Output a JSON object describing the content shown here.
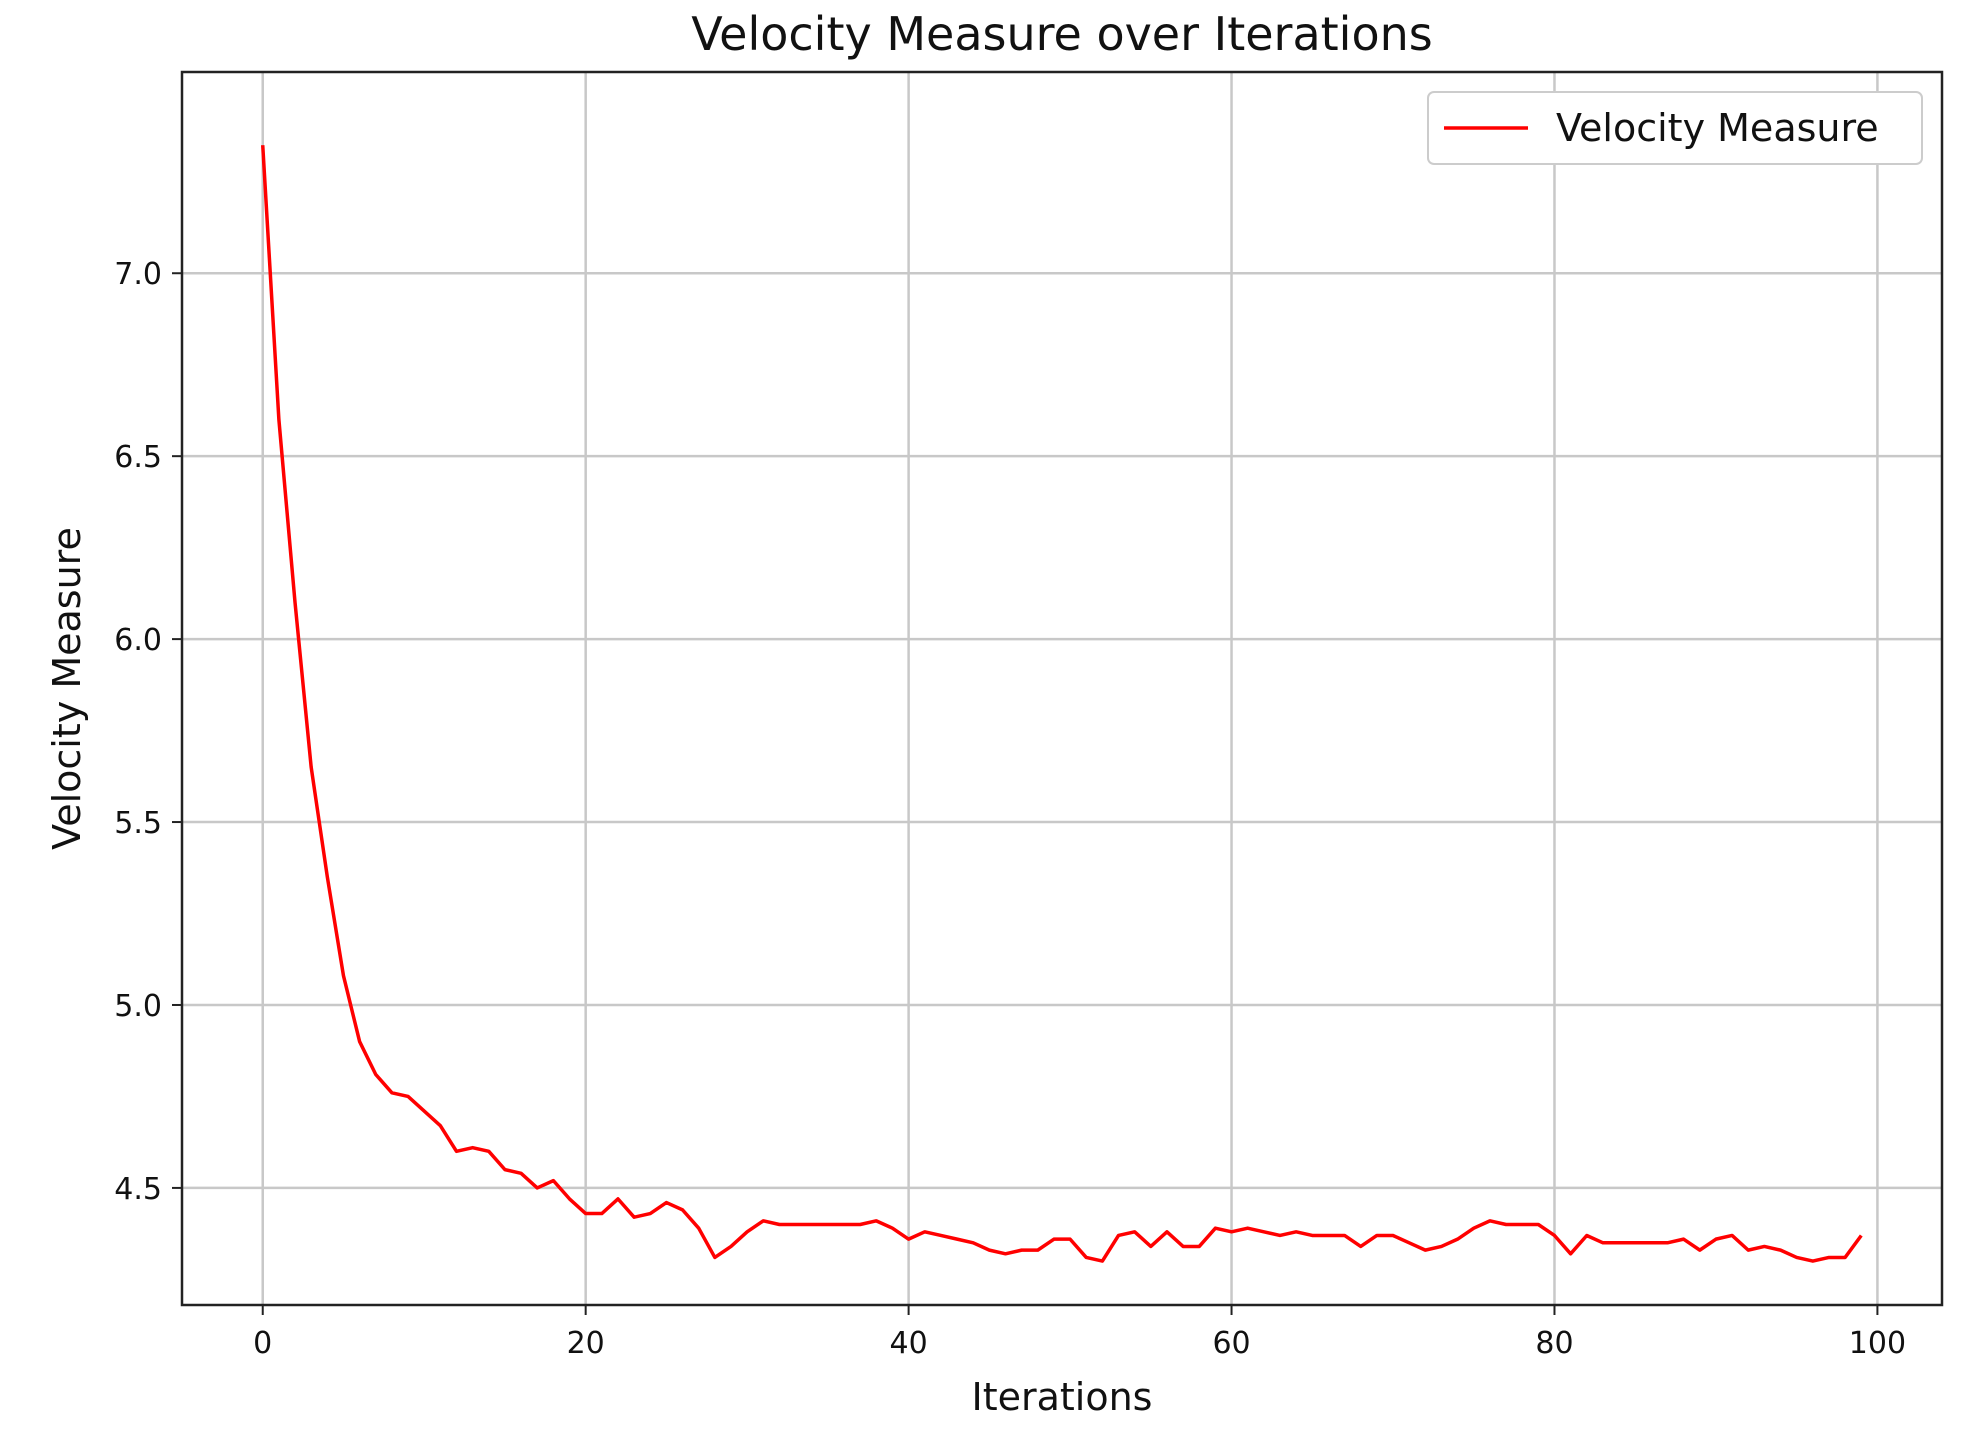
{
  "chart_data": {
    "type": "line",
    "title": "Velocity Measure over Iterations",
    "xlabel": "Iterations",
    "ylabel": "Velocity Measure",
    "xlim": [
      -5,
      104
    ],
    "ylim": [
      4.18,
      7.55
    ],
    "xticks": [
      0,
      20,
      40,
      60,
      80,
      100
    ],
    "xtick_labels": [
      "0",
      "20",
      "40",
      "60",
      "80",
      "100"
    ],
    "yticks": [
      4.5,
      5.0,
      5.5,
      6.0,
      6.5,
      7.0
    ],
    "ytick_labels": [
      "4.5",
      "5.0",
      "5.5",
      "6.0",
      "6.5",
      "7.0"
    ],
    "grid": true,
    "legend_position": "top-right",
    "series": [
      {
        "name": "Velocity Measure",
        "color": "#ff0000",
        "x": [
          0,
          1,
          2,
          3,
          4,
          5,
          6,
          7,
          8,
          9,
          10,
          11,
          12,
          13,
          14,
          15,
          16,
          17,
          18,
          19,
          20,
          21,
          22,
          23,
          24,
          25,
          26,
          27,
          28,
          29,
          30,
          31,
          32,
          33,
          34,
          35,
          36,
          37,
          38,
          39,
          40,
          41,
          42,
          43,
          44,
          45,
          46,
          47,
          48,
          49,
          50,
          51,
          52,
          53,
          54,
          55,
          56,
          57,
          58,
          59,
          60,
          61,
          62,
          63,
          64,
          65,
          66,
          67,
          68,
          69,
          70,
          71,
          72,
          73,
          74,
          75,
          76,
          77,
          78,
          79,
          80,
          81,
          82,
          83,
          84,
          85,
          86,
          87,
          88,
          89,
          90,
          91,
          92,
          93,
          94,
          95,
          96,
          97,
          98,
          99
        ],
        "values": [
          7.35,
          6.6,
          6.1,
          5.65,
          5.35,
          5.08,
          4.9,
          4.81,
          4.76,
          4.75,
          4.71,
          4.67,
          4.6,
          4.61,
          4.6,
          4.55,
          4.54,
          4.5,
          4.52,
          4.47,
          4.43,
          4.43,
          4.47,
          4.42,
          4.43,
          4.46,
          4.44,
          4.39,
          4.31,
          4.34,
          4.38,
          4.41,
          4.4,
          4.4,
          4.4,
          4.4,
          4.4,
          4.4,
          4.41,
          4.39,
          4.36,
          4.38,
          4.37,
          4.36,
          4.35,
          4.33,
          4.32,
          4.33,
          4.33,
          4.36,
          4.36,
          4.31,
          4.3,
          4.37,
          4.38,
          4.34,
          4.38,
          4.34,
          4.34,
          4.39,
          4.38,
          4.39,
          4.38,
          4.37,
          4.38,
          4.37,
          4.37,
          4.37,
          4.34,
          4.37,
          4.37,
          4.35,
          4.33,
          4.34,
          4.36,
          4.39,
          4.41,
          4.4,
          4.4,
          4.4,
          4.37,
          4.32,
          4.37,
          4.35,
          4.35,
          4.35,
          4.35,
          4.35,
          4.36,
          4.33,
          4.36,
          4.37,
          4.33,
          4.34,
          4.33,
          4.31,
          4.3,
          4.31,
          4.31,
          4.37
        ]
      }
    ]
  }
}
